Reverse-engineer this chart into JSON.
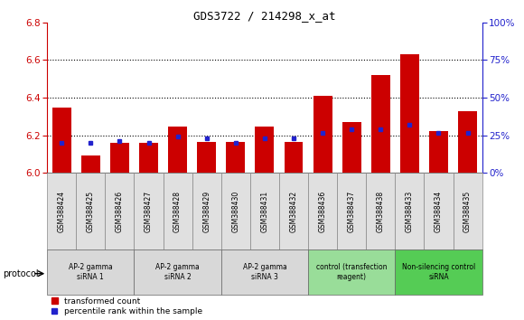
{
  "title": "GDS3722 / 214298_x_at",
  "samples": [
    "GSM388424",
    "GSM388425",
    "GSM388426",
    "GSM388427",
    "GSM388428",
    "GSM388429",
    "GSM388430",
    "GSM388431",
    "GSM388432",
    "GSM388436",
    "GSM388437",
    "GSM388438",
    "GSM388433",
    "GSM388434",
    "GSM388435"
  ],
  "red_values": [
    6.345,
    6.09,
    6.16,
    6.16,
    6.245,
    6.165,
    6.165,
    6.245,
    6.165,
    6.41,
    6.27,
    6.52,
    6.63,
    6.22,
    6.33
  ],
  "blue_y": [
    6.16,
    6.158,
    6.17,
    6.158,
    6.193,
    6.185,
    6.158,
    6.185,
    6.183,
    6.21,
    6.233,
    6.233,
    6.258,
    6.21,
    6.21
  ],
  "y_min": 6.0,
  "y_max": 6.8,
  "y_ticks_left": [
    6.0,
    6.2,
    6.4,
    6.6,
    6.8
  ],
  "y_ticks_right": [
    0,
    25,
    50,
    75,
    100
  ],
  "grid_lines": [
    6.2,
    6.4,
    6.6
  ],
  "bar_color": "#cc0000",
  "dot_color": "#2222cc",
  "left_axis_color": "#cc0000",
  "right_axis_color": "#2222cc",
  "groups": [
    {
      "label": "AP-2 gamma\nsiRNA 1",
      "start": 0,
      "end": 2,
      "color": "#d8d8d8"
    },
    {
      "label": "AP-2 gamma\nsiRNA 2",
      "start": 3,
      "end": 5,
      "color": "#d8d8d8"
    },
    {
      "label": "AP-2 gamma\nsiRNA 3",
      "start": 6,
      "end": 8,
      "color": "#d8d8d8"
    },
    {
      "label": "control (transfection\nreagent)",
      "start": 9,
      "end": 11,
      "color": "#99dd99"
    },
    {
      "label": "Non-silencing control\nsiRNA",
      "start": 12,
      "end": 14,
      "color": "#55cc55"
    }
  ],
  "legend_red": "transformed count",
  "legend_blue": "percentile rank within the sample",
  "protocol_label": "protocol"
}
